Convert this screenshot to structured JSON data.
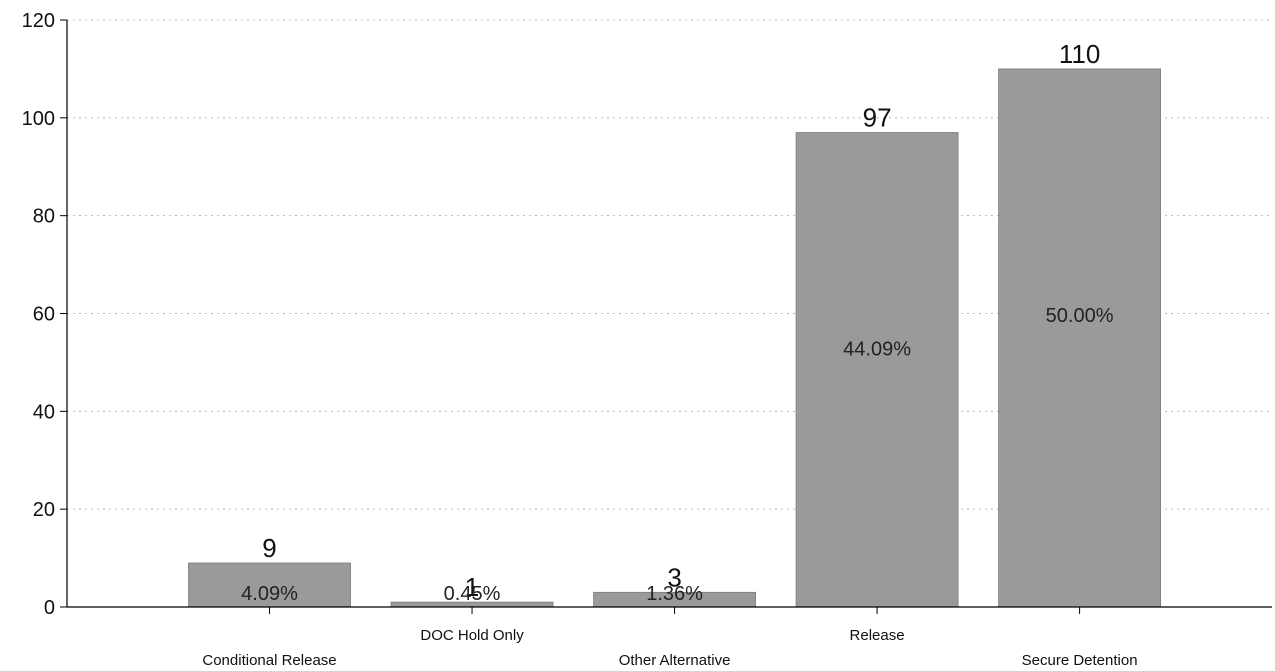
{
  "chart_data": {
    "type": "bar",
    "title": "",
    "xlabel": "",
    "ylabel": "",
    "ylim": [
      0,
      120
    ],
    "yticks": [
      0,
      20,
      40,
      60,
      80,
      100,
      120
    ],
    "grid": true,
    "legend": "none",
    "bar_color": "#9a9a9a",
    "categories": [
      "Conditional Release",
      "DOC Hold Only",
      "Other Alternative",
      "Release",
      "Secure Detention"
    ],
    "values": [
      9,
      1,
      3,
      97,
      110
    ],
    "value_labels": [
      "9",
      "1",
      "3",
      "97",
      "110"
    ],
    "percent_labels": [
      "4.09%",
      "0.45%",
      "1.36%",
      "44.09%",
      "50.00%"
    ]
  }
}
